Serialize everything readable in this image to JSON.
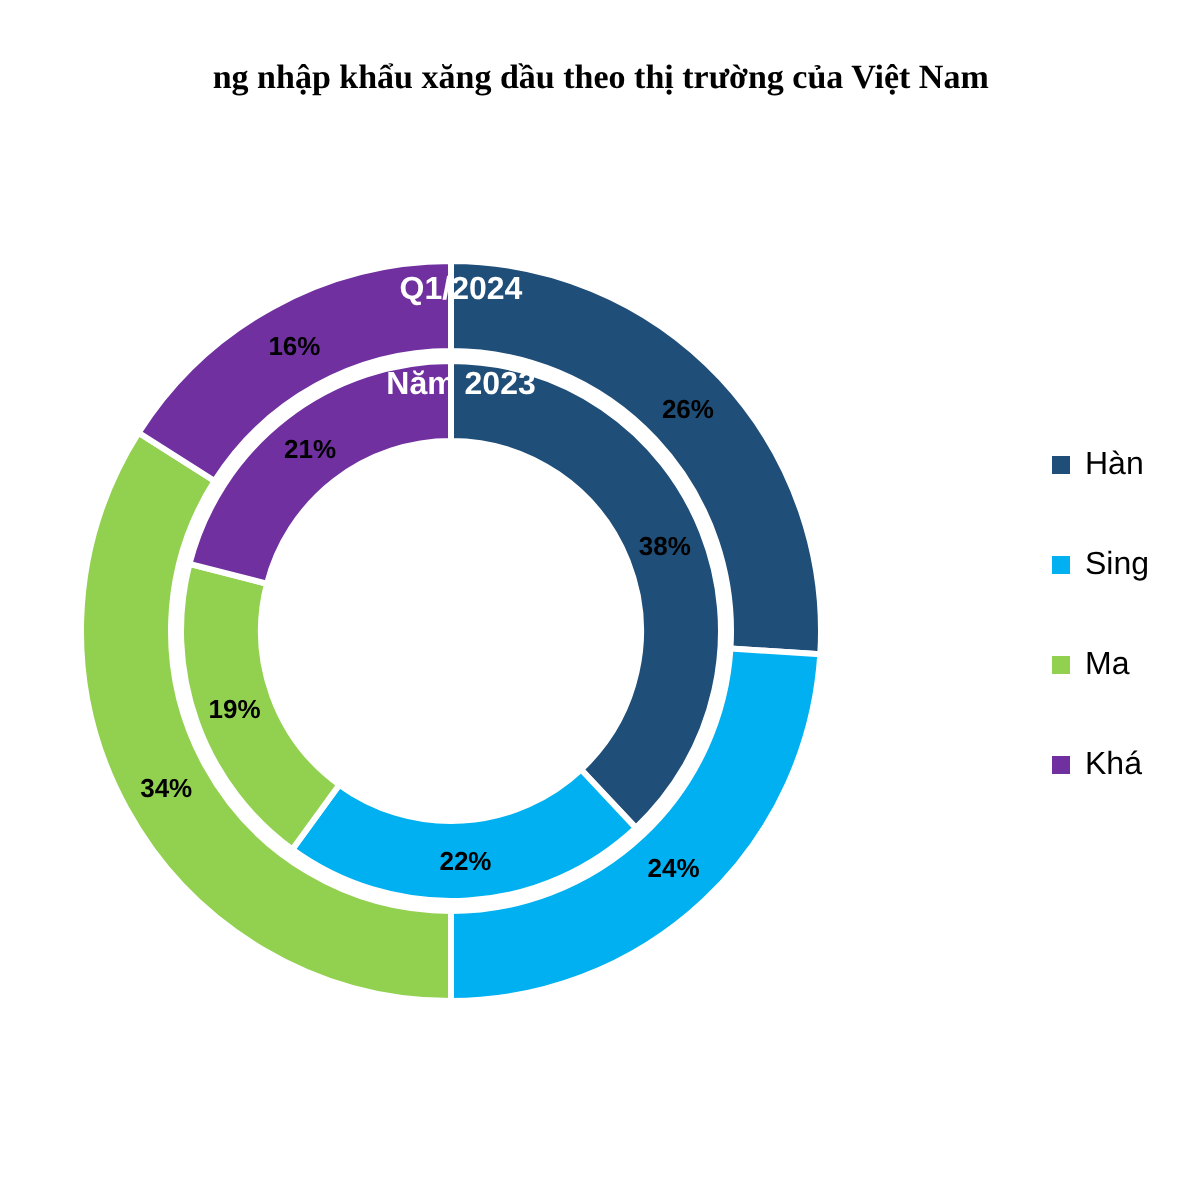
{
  "chart_data": {
    "type": "donut",
    "title": "ng nhập khẩu xăng dầu theo thị trường của Việt Nam",
    "categories": [
      "Hàn",
      "Sing",
      "Ma",
      "Khá"
    ],
    "colors": [
      "#1f4e79",
      "#00b0f0",
      "#92d050",
      "#7030a0"
    ],
    "series": [
      {
        "name": "Q1/2024",
        "values": [
          26,
          24,
          34,
          16
        ],
        "value_labels": [
          "26%",
          "24%",
          "34%",
          "16%"
        ]
      },
      {
        "name": "Năm 2023",
        "values": [
          38,
          22,
          19,
          21
        ],
        "value_labels": [
          "38%",
          "22%",
          "19%",
          "21%"
        ]
      }
    ],
    "legend": "right"
  }
}
